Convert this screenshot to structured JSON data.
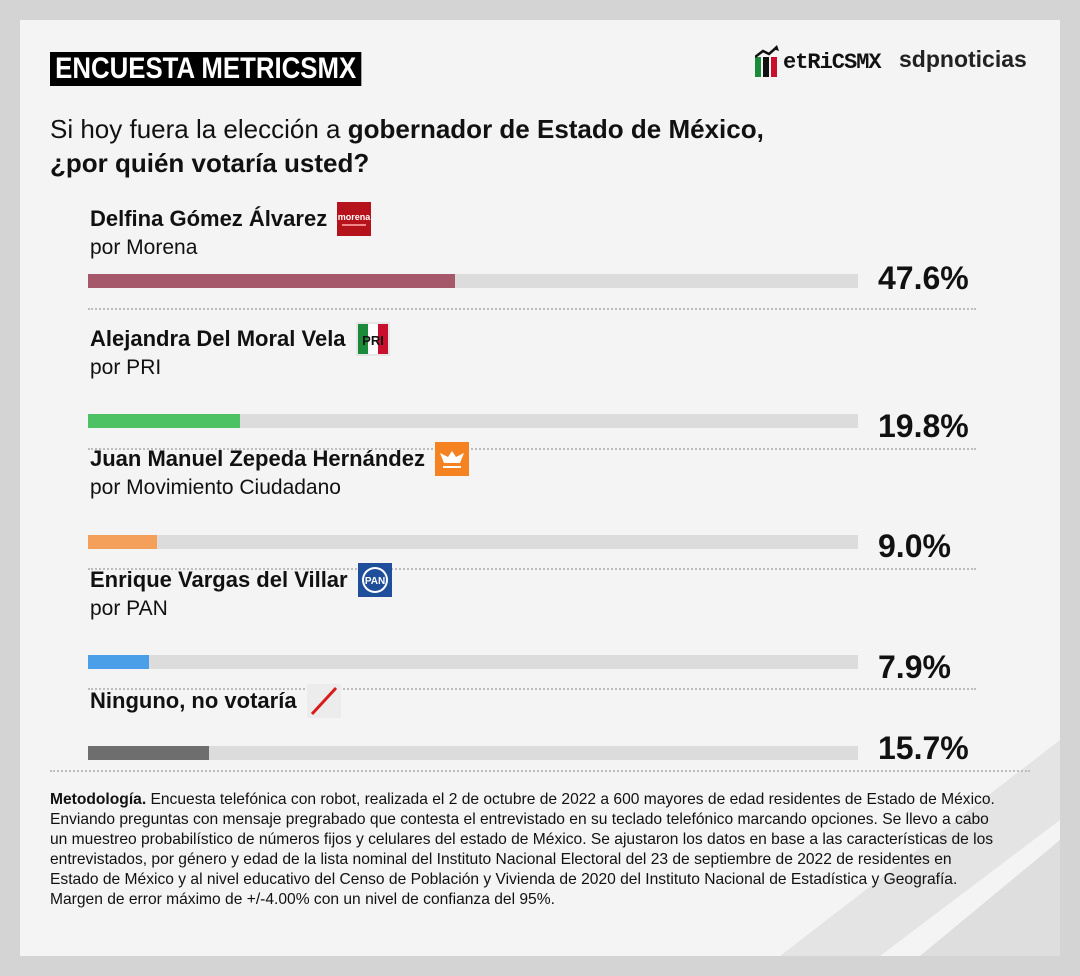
{
  "header": {
    "badge": "ENCUESTA METRICSMX",
    "brand_metrics": "etRiCSMX",
    "brand_sdp": "sdpnoticias"
  },
  "question": {
    "prefix": "Si hoy fuera la elección a ",
    "bold1": "gobernador de Estado de México,",
    "bold2": "¿por quién votaría usted?"
  },
  "candidates": [
    {
      "name": "Delfina Gómez Álvarez",
      "party": "por Morena",
      "pct_label": "47.6%",
      "logo": "morena-logo",
      "logo_text": "morena"
    },
    {
      "name": "Alejandra Del Moral Vela",
      "party": "por PRI",
      "pct_label": "19.8%",
      "logo": "pri-logo",
      "logo_text": "PRI"
    },
    {
      "name": "Juan Manuel Zepeda Hernández",
      "party": "por Movimiento Ciudadano",
      "pct_label": "9.0%",
      "logo": "mc-logo"
    },
    {
      "name": "Enrique Vargas del Villar",
      "party": "por PAN",
      "pct_label": "7.9%",
      "logo": "pan-logo",
      "logo_text": "PAN"
    },
    {
      "name": "Ninguno, no votaría",
      "party": "",
      "pct_label": "15.7%",
      "logo": "slash-icon"
    }
  ],
  "chart_data": {
    "type": "bar",
    "categories": [
      "Delfina Gómez Álvarez",
      "Alejandra Del Moral Vela",
      "Juan Manuel Zepeda Hernández",
      "Enrique Vargas del Villar",
      "Ninguno, no votaría"
    ],
    "values": [
      47.6,
      19.8,
      9.0,
      7.9,
      15.7
    ],
    "colors": [
      "#a6586b",
      "#4cc264",
      "#f5a05a",
      "#4a9fe8",
      "#6e6e6e"
    ],
    "xlim": [
      0,
      100
    ],
    "orientation": "horizontal"
  },
  "methodology": {
    "label": "Metodología.",
    "text": " Encuesta telefónica con robot, realizada el 2 de octubre de 2022 a 600 mayores de edad residentes de Estado de México. Enviando preguntas con mensaje pregrabado que contesta el entrevistado en su teclado telefónico marcando opciones. Se llevo a cabo un muestreo probabilístico de números fijos y celulares del estado de México. Se ajustaron los datos en base a las características de los entrevistados, por género y edad de la lista nominal del Instituto Nacional Electoral del 23 de septiembre de 2022 de residentes en Estado de México y al nivel educativo del Censo de Población y Vivienda de 2020 del Instituto Nacional de Estadística y Geografía. Margen de error máximo de +/-4.00% con un nivel de confianza del 95%."
  },
  "colors": {
    "background": "#f4f4f4",
    "frame": "#d4d4d4",
    "morena": "#b5121b",
    "mc": "#f58220",
    "pan": "#1f4e9b"
  }
}
